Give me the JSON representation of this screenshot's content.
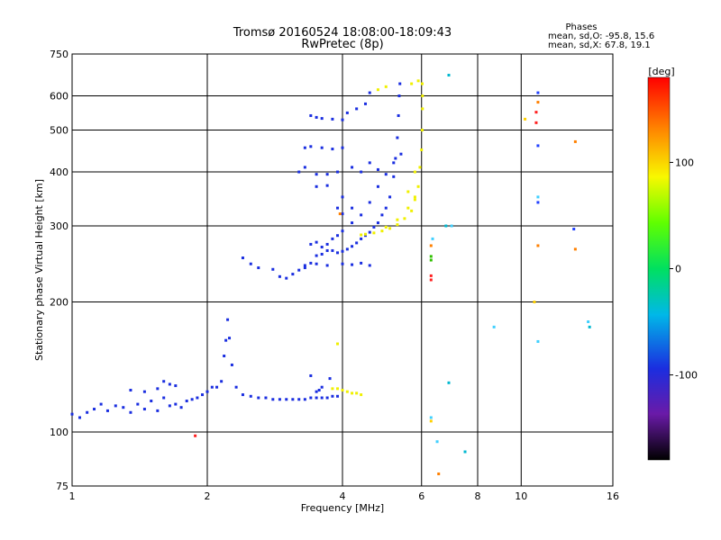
{
  "header": {
    "title_line1": "Tromsø 20160524 18:08:00-18:09:43",
    "title_line2": "RwPretec (8p)",
    "stats_title": "Phases",
    "stats_o": "mean, sd,O: -95.8, 15.6",
    "stats_x": "mean, sd,X: 67.8, 19.1"
  },
  "colorbar": {
    "label": "[deg]",
    "range": [
      -180,
      180
    ],
    "ticks": [
      {
        "value": 100,
        "label": "100"
      },
      {
        "value": 0,
        "label": "0"
      },
      {
        "value": -100,
        "label": "-100"
      }
    ]
  },
  "colors": {
    "o_mode": "#1a2ee0",
    "x_mode": "#f0f000",
    "scatter": [
      "#ff2020",
      "#ff8000",
      "#40d0ff",
      "#00b8d0",
      "#ffd000",
      "#2040ff",
      "#30c000"
    ]
  },
  "chart_data": {
    "type": "scatter",
    "xlabel": "Frequency [MHz]",
    "ylabel": "Stationary phase Virtual Height [km]",
    "xscale": "log",
    "yscale": "log",
    "xlim": [
      1,
      16
    ],
    "ylim": [
      75,
      750
    ],
    "xticks": [
      {
        "value": 1,
        "label": "1"
      },
      {
        "value": 2,
        "label": "2"
      },
      {
        "value": 4,
        "label": "4"
      },
      {
        "value": 6,
        "label": "6"
      },
      {
        "value": 8,
        "label": "8"
      },
      {
        "value": 10,
        "label": "10"
      },
      {
        "value": 16,
        "label": "16"
      }
    ],
    "yticks": [
      {
        "value": 75,
        "label": "75"
      },
      {
        "value": 100,
        "label": "100"
      },
      {
        "value": 200,
        "label": "200"
      },
      {
        "value": 300,
        "label": "300"
      },
      {
        "value": 400,
        "label": "400"
      },
      {
        "value": 500,
        "label": "500"
      },
      {
        "value": 600,
        "label": "600"
      },
      {
        "value": 750,
        "label": "750"
      }
    ],
    "grid": true,
    "o_mode": [
      [
        1.0,
        110
      ],
      [
        1.04,
        108
      ],
      [
        1.08,
        111
      ],
      [
        1.12,
        113
      ],
      [
        1.16,
        116
      ],
      [
        1.2,
        112
      ],
      [
        1.25,
        115
      ],
      [
        1.3,
        114
      ],
      [
        1.35,
        111
      ],
      [
        1.4,
        116
      ],
      [
        1.45,
        113
      ],
      [
        1.5,
        118
      ],
      [
        1.55,
        112
      ],
      [
        1.6,
        120
      ],
      [
        1.65,
        115
      ],
      [
        1.7,
        116
      ],
      [
        1.75,
        114
      ],
      [
        1.8,
        118
      ],
      [
        1.85,
        119
      ],
      [
        1.9,
        120
      ],
      [
        1.95,
        122
      ],
      [
        2.0,
        124
      ],
      [
        2.05,
        127
      ],
      [
        2.1,
        127
      ],
      [
        2.15,
        131
      ],
      [
        2.18,
        150
      ],
      [
        2.2,
        163
      ],
      [
        2.22,
        182
      ],
      [
        2.24,
        165
      ],
      [
        2.27,
        143
      ],
      [
        2.32,
        127
      ],
      [
        2.4,
        122
      ],
      [
        2.5,
        121
      ],
      [
        2.6,
        120
      ],
      [
        2.7,
        120
      ],
      [
        2.8,
        119
      ],
      [
        2.9,
        119
      ],
      [
        3.0,
        119
      ],
      [
        3.1,
        119
      ],
      [
        3.2,
        119
      ],
      [
        3.3,
        119
      ],
      [
        3.4,
        120
      ],
      [
        3.5,
        120
      ],
      [
        3.6,
        120
      ],
      [
        3.7,
        120
      ],
      [
        3.8,
        121
      ],
      [
        3.9,
        121
      ],
      [
        1.6,
        131
      ],
      [
        1.65,
        129
      ],
      [
        1.55,
        126
      ],
      [
        1.35,
        125
      ],
      [
        1.45,
        124
      ],
      [
        1.7,
        128
      ],
      [
        3.5,
        124
      ],
      [
        3.6,
        127
      ],
      [
        3.75,
        133
      ],
      [
        3.4,
        135
      ],
      [
        3.55,
        125
      ],
      [
        2.4,
        253
      ],
      [
        2.5,
        245
      ],
      [
        2.6,
        240
      ],
      [
        2.8,
        238
      ],
      [
        2.9,
        229
      ],
      [
        3.0,
        227
      ],
      [
        3.1,
        232
      ],
      [
        3.2,
        237
      ],
      [
        3.3,
        240
      ],
      [
        3.4,
        246
      ],
      [
        3.5,
        256
      ],
      [
        3.6,
        258
      ],
      [
        3.7,
        263
      ],
      [
        3.8,
        263
      ],
      [
        3.9,
        260
      ],
      [
        4.0,
        262
      ],
      [
        4.1,
        265
      ],
      [
        4.2,
        269
      ],
      [
        4.3,
        274
      ],
      [
        4.4,
        280
      ],
      [
        4.5,
        285
      ],
      [
        4.6,
        290
      ],
      [
        4.7,
        298
      ],
      [
        4.8,
        305
      ],
      [
        4.9,
        318
      ],
      [
        5.0,
        330
      ],
      [
        5.1,
        350
      ],
      [
        5.2,
        390
      ],
      [
        5.25,
        430
      ],
      [
        5.3,
        480
      ],
      [
        5.33,
        540
      ],
      [
        5.35,
        600
      ],
      [
        5.37,
        640
      ],
      [
        3.4,
        272
      ],
      [
        3.5,
        275
      ],
      [
        3.6,
        268
      ],
      [
        3.7,
        272
      ],
      [
        3.8,
        280
      ],
      [
        3.9,
        285
      ],
      [
        4.0,
        292
      ],
      [
        4.2,
        305
      ],
      [
        4.4,
        318
      ],
      [
        4.6,
        340
      ],
      [
        4.8,
        370
      ],
      [
        5.0,
        395
      ],
      [
        5.2,
        420
      ],
      [
        5.4,
        440
      ],
      [
        3.3,
        243
      ],
      [
        3.5,
        245
      ],
      [
        3.7,
        243
      ],
      [
        4.0,
        245
      ],
      [
        4.2,
        244
      ],
      [
        4.4,
        246
      ],
      [
        4.6,
        243
      ],
      [
        3.2,
        400
      ],
      [
        3.3,
        410
      ],
      [
        3.5,
        395
      ],
      [
        3.7,
        395
      ],
      [
        3.9,
        400
      ],
      [
        3.5,
        370
      ],
      [
        3.7,
        372
      ],
      [
        3.3,
        455
      ],
      [
        3.4,
        458
      ],
      [
        3.6,
        455
      ],
      [
        3.8,
        452
      ],
      [
        4.0,
        455
      ],
      [
        3.4,
        540
      ],
      [
        3.5,
        535
      ],
      [
        3.6,
        532
      ],
      [
        3.8,
        530
      ],
      [
        4.0,
        528
      ],
      [
        4.1,
        548
      ],
      [
        4.3,
        560
      ],
      [
        4.5,
        575
      ],
      [
        4.6,
        610
      ],
      [
        4.0,
        320
      ],
      [
        4.0,
        350
      ],
      [
        3.9,
        330
      ],
      [
        4.2,
        330
      ],
      [
        4.2,
        410
      ],
      [
        4.4,
        400
      ],
      [
        4.6,
        420
      ],
      [
        4.8,
        405
      ]
    ],
    "x_mode": [
      [
        3.8,
        126
      ],
      [
        3.9,
        126
      ],
      [
        4.0,
        125
      ],
      [
        4.1,
        124
      ],
      [
        4.2,
        123
      ],
      [
        4.3,
        123
      ],
      [
        4.4,
        122
      ],
      [
        4.4,
        286
      ],
      [
        4.5,
        287
      ],
      [
        4.7,
        289
      ],
      [
        4.9,
        292
      ],
      [
        5.1,
        296
      ],
      [
        5.3,
        302
      ],
      [
        5.5,
        312
      ],
      [
        5.7,
        325
      ],
      [
        5.8,
        345
      ],
      [
        5.9,
        370
      ],
      [
        5.95,
        410
      ],
      [
        6.0,
        450
      ],
      [
        6.02,
        500
      ],
      [
        6.03,
        560
      ],
      [
        6.03,
        600
      ],
      [
        6.02,
        640
      ],
      [
        5.0,
        298
      ],
      [
        5.3,
        310
      ],
      [
        5.6,
        330
      ],
      [
        5.8,
        350
      ],
      [
        5.6,
        360
      ],
      [
        5.8,
        400
      ],
      [
        4.8,
        620
      ],
      [
        5.0,
        630
      ],
      [
        5.7,
        640
      ],
      [
        5.9,
        650
      ],
      [
        3.9,
        160
      ]
    ],
    "scattered": [
      [
        1.88,
        98,
        0
      ],
      [
        3.95,
        320,
        1
      ],
      [
        6.3,
        270,
        1
      ],
      [
        6.3,
        230,
        0
      ],
      [
        6.3,
        225,
        0
      ],
      [
        6.35,
        280,
        2
      ],
      [
        6.5,
        95,
        2
      ],
      [
        6.55,
        80,
        1
      ],
      [
        6.3,
        106,
        4
      ],
      [
        6.3,
        108,
        2
      ],
      [
        6.3,
        250,
        6
      ],
      [
        6.3,
        255,
        6
      ],
      [
        7.0,
        300,
        2
      ],
      [
        7.5,
        90,
        3
      ],
      [
        6.9,
        670,
        3
      ],
      [
        6.9,
        130,
        3
      ],
      [
        6.8,
        300,
        3
      ],
      [
        8.7,
        175,
        2
      ],
      [
        10.2,
        530,
        4
      ],
      [
        10.8,
        550,
        0
      ],
      [
        10.8,
        520,
        0
      ],
      [
        10.9,
        610,
        5
      ],
      [
        10.9,
        580,
        1
      ],
      [
        10.9,
        460,
        5
      ],
      [
        10.9,
        350,
        2
      ],
      [
        10.9,
        340,
        5
      ],
      [
        10.9,
        270,
        1
      ],
      [
        10.9,
        162,
        2
      ],
      [
        10.7,
        200,
        4
      ],
      [
        13.1,
        295,
        5
      ],
      [
        13.2,
        265,
        1
      ],
      [
        13.2,
        470,
        1
      ],
      [
        14.1,
        180,
        2
      ],
      [
        14.2,
        175,
        3
      ]
    ]
  }
}
